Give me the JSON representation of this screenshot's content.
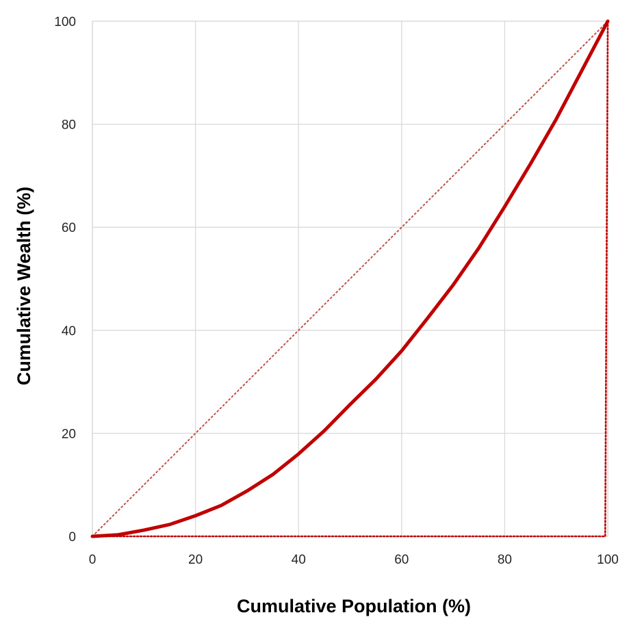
{
  "chart_data": {
    "type": "line",
    "title": "",
    "xlabel": "Cumulative Population (%)",
    "ylabel": "Cumulative Wealth (%)",
    "xlim": [
      0,
      100
    ],
    "ylim": [
      0,
      100
    ],
    "xticks": [
      "0",
      "20",
      "40",
      "60",
      "80",
      "100"
    ],
    "yticks": [
      "0",
      "20",
      "40",
      "60",
      "80",
      "100"
    ],
    "grid": true,
    "legend": "none",
    "colors": {
      "lorenz_curve": "#c00000",
      "equality_line": "#c0504d",
      "perfect_inequality": "#c00000",
      "grid": "#d9d9d9"
    },
    "series": [
      {
        "style": "solid",
        "x": [
          0,
          5,
          10,
          15,
          20,
          25,
          30,
          35,
          40,
          45,
          50,
          55,
          60,
          65,
          70,
          75,
          80,
          85,
          90,
          95,
          100
        ],
        "y": [
          0,
          0.3,
          1.2,
          2.3,
          4.0,
          6.0,
          8.8,
          12.0,
          16.0,
          20.5,
          25.6,
          30.5,
          36.0,
          42.3,
          48.8,
          56.0,
          64.0,
          72.3,
          81.0,
          90.5,
          100
        ]
      },
      {
        "style": "dotted",
        "x": [
          0,
          100
        ],
        "y": [
          0,
          100
        ]
      },
      {
        "style": "dotted",
        "x": [
          0,
          99.5,
          100
        ],
        "y": [
          0,
          0,
          100
        ]
      }
    ]
  }
}
